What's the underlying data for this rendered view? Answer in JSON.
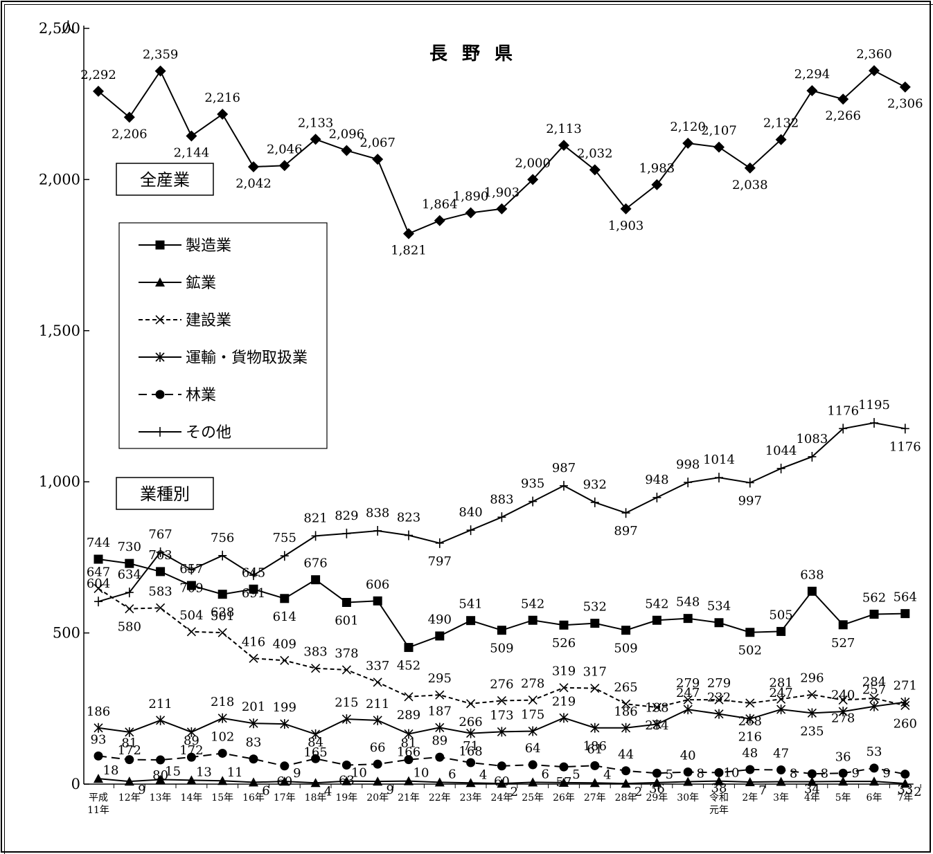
{
  "chart_data": {
    "type": "line",
    "title": "長 野 県",
    "ylabel": "人",
    "ylim": [
      0,
      2500
    ],
    "yticks": [
      0,
      500,
      1000,
      1500,
      2000,
      2500
    ],
    "ytick_labels": [
      "0",
      "500",
      "1,000",
      "1,500",
      "2,000",
      "2,500"
    ],
    "categories": [
      "平成\n11年",
      "12年",
      "13年",
      "14年",
      "15年",
      "16年",
      "17年",
      "18年",
      "19年",
      "20年",
      "21年",
      "22年",
      "23年",
      "24年",
      "25年",
      "26年",
      "27年",
      "28年",
      "29年",
      "30年",
      "令和\n元年",
      "2年",
      "3年",
      "4年",
      "5年",
      "6年",
      "7年"
    ],
    "annotations": [
      "全産業",
      "業種別"
    ],
    "legend_position": "left",
    "grid": false,
    "total": {
      "name": "全産業",
      "values": [
        2292,
        2206,
        2359,
        2144,
        2216,
        2042,
        2046,
        2133,
        2096,
        2067,
        1821,
        1864,
        1890,
        1903,
        2000,
        2113,
        2032,
        1903,
        1983,
        2120,
        2107,
        2038,
        2132,
        2294,
        2266,
        2360,
        2306
      ],
      "labels": [
        "2,292",
        "2,206",
        "2,359",
        "2,144",
        "2,216",
        "2,042",
        "2,046",
        "2,133",
        "2,096",
        "2,067",
        "1,821",
        "1,864",
        "1,890",
        "1,903",
        "2,000",
        "2,113",
        "2,032",
        "1,903",
        "1,983",
        "2,120",
        "2,107",
        "2,038",
        "2,132",
        "2,294",
        "2,266",
        "2,360",
        "2,306"
      ],
      "marker": "diamond",
      "dash": "solid"
    },
    "series": [
      {
        "name": "製造業",
        "marker": "square",
        "dash": "solid",
        "values": [
          744,
          730,
          703,
          657,
          628,
          645,
          614,
          676,
          601,
          606,
          452,
          490,
          541,
          509,
          542,
          526,
          532,
          509,
          542,
          548,
          534,
          502,
          505,
          638,
          527,
          562,
          564
        ]
      },
      {
        "name": "鉱業",
        "marker": "triangle",
        "dash": "solid",
        "values": [
          18,
          9,
          15,
          13,
          11,
          6,
          9,
          4,
          10,
          9,
          10,
          6,
          4,
          2,
          6,
          5,
          4,
          2,
          5,
          8,
          10,
          7,
          8,
          8,
          9,
          9,
          2
        ]
      },
      {
        "name": "建設業",
        "marker": "x",
        "dash": "short",
        "values": [
          647,
          580,
          583,
          504,
          501,
          416,
          409,
          383,
          378,
          337,
          289,
          295,
          266,
          276,
          278,
          319,
          317,
          265,
          254,
          279,
          279,
          268,
          281,
          296,
          278,
          284,
          260
        ]
      },
      {
        "name": "運輸・貨物取扱業",
        "marker": "star",
        "dash": "solid",
        "values": [
          186,
          172,
          211,
          172,
          218,
          201,
          199,
          165,
          215,
          211,
          166,
          187,
          168,
          173,
          175,
          219,
          186,
          186,
          198,
          247,
          232,
          216,
          247,
          235,
          240,
          257,
          271
        ]
      },
      {
        "name": "林業",
        "marker": "circle",
        "dash": "long",
        "values": [
          93,
          81,
          80,
          89,
          102,
          83,
          60,
          84,
          63,
          66,
          81,
          89,
          71,
          60,
          64,
          57,
          61,
          44,
          36,
          40,
          38,
          48,
          47,
          34,
          36,
          53,
          33
        ]
      },
      {
        "name": "その他",
        "marker": "plus",
        "dash": "solid",
        "values": [
          604,
          634,
          767,
          709,
          756,
          691,
          755,
          821,
          829,
          838,
          823,
          797,
          840,
          883,
          935,
          987,
          932,
          897,
          948,
          998,
          1014,
          997,
          1044,
          1083,
          1176,
          1195,
          1176
        ]
      }
    ]
  }
}
